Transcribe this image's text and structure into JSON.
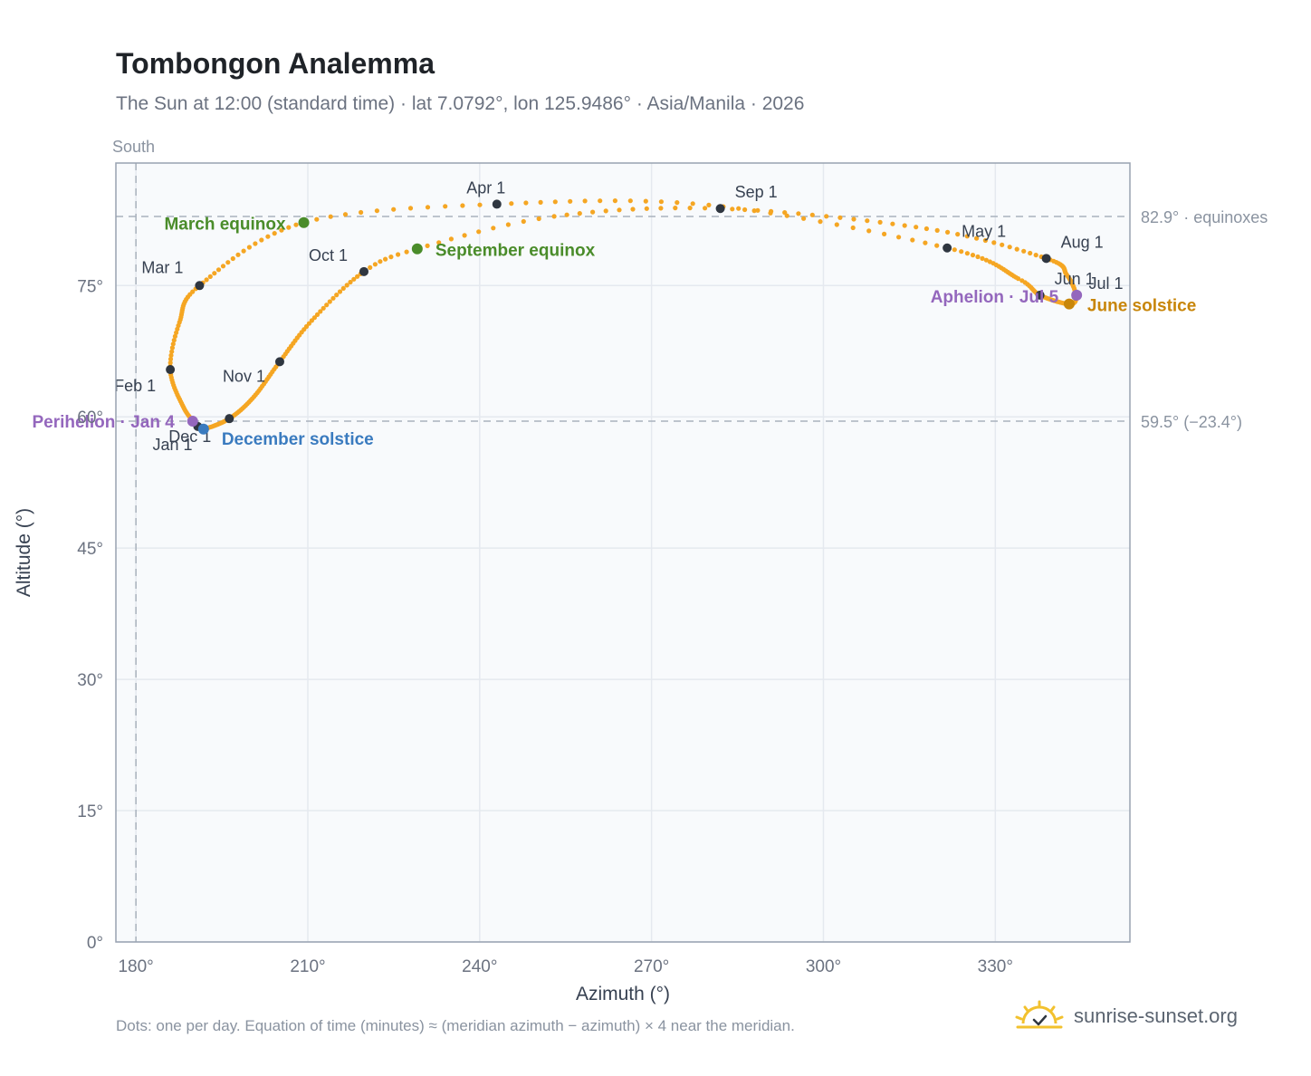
{
  "header": {
    "title": "Tombongon Analemma",
    "subtitle": "The Sun at 12:00 (standard time) · lat 7.0792°, lon 125.9486° · Asia/Manila · 2026"
  },
  "footer": {
    "note": "Dots: one per day. Equation of time (minutes) ≈ (meridian azimuth − azimuth) × 4 near the meridian.",
    "brand": "sunrise-sunset.org"
  },
  "colors": {
    "path": "#f5a623",
    "month_point": "#2f3640",
    "equinox": "#4a8c2a",
    "june_solstice": "#c8860a",
    "december_solstice": "#3a7bbf",
    "apsis": "#9467bd",
    "grid": "#e5e9ef",
    "plot_bg": "#f8fafc",
    "frame": "#98a2b0",
    "ref_line": "#a9b2bd"
  },
  "chart_data": {
    "type": "scatter",
    "title": "Tombongon Analemma",
    "xlabel": "Azimuth (°)",
    "ylabel": "Altitude (°)",
    "xlim": [
      176.5,
      353.5
    ],
    "ylim": [
      0,
      89
    ],
    "x_ticks": [
      180,
      210,
      240,
      270,
      300,
      330
    ],
    "x_tick_labels": [
      "180°",
      "210°",
      "240°",
      "270°",
      "300°",
      "330°"
    ],
    "y_ticks": [
      0,
      15,
      30,
      45,
      60,
      75
    ],
    "y_tick_labels": [
      "0°",
      "15°",
      "30°",
      "45°",
      "60°",
      "75°"
    ],
    "grid": true,
    "meridian": {
      "azimuth": 180,
      "label": "South"
    },
    "reference_lines": [
      {
        "altitude": 82.9,
        "label": "82.9° · equinoxes"
      },
      {
        "altitude": 59.5,
        "label": "59.5° (−23.4°)"
      }
    ],
    "path_anchors": [
      {
        "day": 1,
        "az": 190.8,
        "alt": 58.9
      },
      {
        "day": 16,
        "az": 188.3,
        "alt": 61.1
      },
      {
        "day": 32,
        "az": 186.0,
        "alt": 65.4
      },
      {
        "day": 45,
        "az": 187.6,
        "alt": 70.8
      },
      {
        "day": 60,
        "az": 191.1,
        "alt": 75.0
      },
      {
        "day": 79,
        "az": 209.3,
        "alt": 82.2
      },
      {
        "day": 91,
        "az": 243.0,
        "alt": 84.3
      },
      {
        "day": 105,
        "az": 280.0,
        "alt": 84.2
      },
      {
        "day": 121,
        "az": 321.6,
        "alt": 79.3
      },
      {
        "day": 141,
        "az": 334.0,
        "alt": 75.8
      },
      {
        "day": 152,
        "az": 337.8,
        "alt": 73.9
      },
      {
        "day": 172,
        "az": 342.9,
        "alt": 72.9
      },
      {
        "day": 182,
        "az": 344.1,
        "alt": 73.8
      },
      {
        "day": 197,
        "az": 342.5,
        "alt": 76.2
      },
      {
        "day": 213,
        "az": 338.9,
        "alt": 78.1
      },
      {
        "day": 228,
        "az": 318.0,
        "alt": 81.5
      },
      {
        "day": 244,
        "az": 282.0,
        "alt": 83.8
      },
      {
        "day": 256,
        "az": 253.0,
        "alt": 82.9
      },
      {
        "day": 266,
        "az": 229.1,
        "alt": 79.2
      },
      {
        "day": 274,
        "az": 219.8,
        "alt": 76.6
      },
      {
        "day": 290,
        "az": 210.7,
        "alt": 71.0
      },
      {
        "day": 305,
        "az": 205.1,
        "alt": 66.3
      },
      {
        "day": 320,
        "az": 200.6,
        "alt": 62.3
      },
      {
        "day": 335,
        "az": 196.3,
        "alt": 59.8
      },
      {
        "day": 355,
        "az": 191.8,
        "alt": 58.6
      },
      {
        "day": 366,
        "az": 190.8,
        "alt": 58.9
      }
    ],
    "month_points": [
      {
        "label": "Jan 1",
        "az": 190.8,
        "alt": 58.9
      },
      {
        "label": "Feb 1",
        "az": 186.0,
        "alt": 65.4
      },
      {
        "label": "Mar 1",
        "az": 191.1,
        "alt": 75.0
      },
      {
        "label": "Apr 1",
        "az": 243.0,
        "alt": 84.3
      },
      {
        "label": "May 1",
        "az": 321.6,
        "alt": 79.3
      },
      {
        "label": "Jun 1",
        "az": 337.8,
        "alt": 73.9
      },
      {
        "label": "Jul 1",
        "az": 344.1,
        "alt": 73.8
      },
      {
        "label": "Aug 1",
        "az": 338.9,
        "alt": 78.1
      },
      {
        "label": "Sep 1",
        "az": 282.0,
        "alt": 83.8
      },
      {
        "label": "Oct 1",
        "az": 219.8,
        "alt": 76.6
      },
      {
        "label": "Nov 1",
        "az": 205.1,
        "alt": 66.3
      },
      {
        "label": "Dec 1",
        "az": 196.3,
        "alt": 59.8
      }
    ],
    "events": [
      {
        "label": "March equinox",
        "az": 209.3,
        "alt": 82.2,
        "kind": "equinox"
      },
      {
        "label": "September equinox",
        "az": 229.1,
        "alt": 79.2,
        "kind": "equinox"
      },
      {
        "label": "June solstice",
        "az": 342.9,
        "alt": 72.9,
        "kind": "june_solstice"
      },
      {
        "label": "December solstice",
        "az": 191.8,
        "alt": 58.6,
        "kind": "december_solstice"
      },
      {
        "label": "Perihelion · Jan 4",
        "az": 189.9,
        "alt": 59.5,
        "kind": "apsis"
      },
      {
        "label": "Aphelion · Jul 5",
        "az": 344.2,
        "alt": 73.9,
        "kind": "apsis"
      }
    ]
  }
}
